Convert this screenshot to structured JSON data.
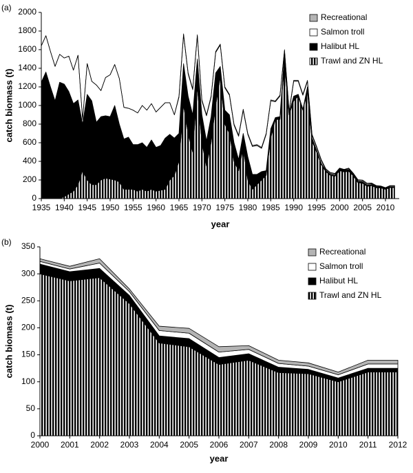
{
  "chart_data": [
    {
      "type": "stacked-area",
      "panel_label": "(a)",
      "xlabel": "year",
      "ylabel": "catch biomass (t)",
      "x": [
        1935,
        1936,
        1937,
        1938,
        1939,
        1940,
        1941,
        1942,
        1943,
        1944,
        1945,
        1946,
        1947,
        1948,
        1949,
        1950,
        1951,
        1952,
        1953,
        1954,
        1955,
        1956,
        1957,
        1958,
        1959,
        1960,
        1961,
        1962,
        1963,
        1964,
        1965,
        1966,
        1967,
        1968,
        1969,
        1970,
        1971,
        1972,
        1973,
        1974,
        1975,
        1976,
        1977,
        1978,
        1979,
        1980,
        1981,
        1982,
        1983,
        1984,
        1985,
        1986,
        1987,
        1988,
        1989,
        1990,
        1991,
        1992,
        1993,
        1994,
        1995,
        1996,
        1997,
        1998,
        1999,
        2000,
        2001,
        2002,
        2003,
        2004,
        2005,
        2006,
        2007,
        2008,
        2009,
        2010,
        2011,
        2012
      ],
      "series": [
        {
          "name": "Trawl and ZN HL",
          "color": "#000000",
          "pattern": "vertical-stripes",
          "values": [
            0,
            0,
            0,
            0,
            0,
            20,
            50,
            80,
            150,
            300,
            200,
            150,
            150,
            200,
            220,
            210,
            200,
            180,
            100,
            100,
            100,
            80,
            100,
            80,
            100,
            80,
            90,
            100,
            200,
            250,
            400,
            1000,
            700,
            500,
            1200,
            600,
            350,
            600,
            1000,
            1300,
            800,
            700,
            400,
            300,
            550,
            200,
            100,
            150,
            200,
            250,
            650,
            850,
            850,
            1450,
            900,
            1050,
            1100,
            950,
            1150,
            620,
            500,
            370,
            290,
            250,
            240,
            300,
            287,
            293,
            245,
            172,
            165,
            132,
            140,
            117,
            115,
            100,
            118,
            118
          ]
        },
        {
          "name": "Halibut HL",
          "color": "#000000",
          "values": [
            1250,
            1360,
            1200,
            1050,
            1250,
            1210,
            1100,
            940,
            910,
            500,
            920,
            900,
            670,
            680,
            670,
            670,
            800,
            620,
            540,
            560,
            480,
            500,
            500,
            470,
            530,
            470,
            480,
            550,
            490,
            400,
            300,
            450,
            400,
            400,
            300,
            300,
            270,
            280,
            350,
            120,
            150,
            200,
            200,
            120,
            150,
            250,
            160,
            110,
            90,
            50,
            100,
            20,
            30,
            100,
            20,
            50,
            20,
            10,
            50,
            30,
            20,
            10,
            10,
            10,
            10,
            18,
            17,
            17,
            15,
            13,
            15,
            13,
            12,
            10,
            8,
            7,
            7,
            7
          ]
        },
        {
          "name": "Salmon troll",
          "color": "#ffffff",
          "values": [
            390,
            390,
            380,
            370,
            300,
            280,
            380,
            360,
            480,
            50,
            330,
            210,
            400,
            280,
            410,
            450,
            440,
            490,
            340,
            310,
            370,
            340,
            400,
            400,
            390,
            380,
            410,
            380,
            340,
            250,
            390,
            310,
            240,
            270,
            250,
            150,
            270,
            210,
            220,
            230,
            240,
            210,
            190,
            250,
            250,
            240,
            300,
            310,
            250,
            390,
            300,
            170,
            220,
            40,
            10,
            160,
            140,
            150,
            60,
            30,
            30,
            30,
            10,
            10,
            10,
            5,
            5,
            10,
            7,
            10,
            10,
            10,
            8,
            7,
            6,
            6,
            8,
            8
          ]
        },
        {
          "name": "Recreational",
          "color": "#b4b4b4",
          "values": [
            0,
            0,
            0,
            0,
            0,
            0,
            0,
            0,
            0,
            0,
            0,
            0,
            0,
            0,
            0,
            0,
            0,
            0,
            0,
            0,
            0,
            0,
            0,
            0,
            0,
            0,
            0,
            0,
            0,
            0,
            10,
            10,
            10,
            10,
            10,
            10,
            10,
            10,
            10,
            10,
            10,
            10,
            10,
            10,
            10,
            10,
            10,
            10,
            10,
            10,
            10,
            10,
            10,
            10,
            10,
            10,
            10,
            10,
            10,
            10,
            10,
            10,
            10,
            10,
            10,
            5,
            5,
            8,
            5,
            8,
            9,
            10,
            7,
            6,
            6,
            5,
            7,
            7
          ]
        }
      ],
      "xlim": [
        1935,
        2013
      ],
      "xticks": [
        1935,
        1940,
        1945,
        1950,
        1955,
        1960,
        1965,
        1970,
        1975,
        1980,
        1985,
        1990,
        1995,
        2000,
        2005,
        2010
      ],
      "ylim": [
        0,
        2000
      ],
      "yticks": [
        0,
        200,
        400,
        600,
        800,
        1000,
        1200,
        1400,
        1600,
        1800,
        2000
      ],
      "legend": "upper right"
    },
    {
      "type": "stacked-area",
      "panel_label": "(b)",
      "xlabel": "year",
      "ylabel": "catch biomass (t)",
      "x": [
        2000,
        2001,
        2002,
        2003,
        2004,
        2005,
        2006,
        2007,
        2008,
        2009,
        2010,
        2011,
        2012
      ],
      "series": [
        {
          "name": "Trawl and ZN HL",
          "color": "#000000",
          "pattern": "vertical-stripes",
          "values": [
            300,
            287,
            293,
            245,
            172,
            165,
            132,
            140,
            117,
            115,
            100,
            118,
            118
          ]
        },
        {
          "name": "Halibut HL",
          "color": "#000000",
          "values": [
            18,
            17,
            17,
            15,
            13,
            15,
            13,
            12,
            10,
            8,
            7,
            7,
            7
          ]
        },
        {
          "name": "Salmon troll",
          "color": "#ffffff",
          "values": [
            5,
            5,
            10,
            7,
            10,
            10,
            10,
            8,
            7,
            6,
            6,
            8,
            8
          ]
        },
        {
          "name": "Recreational",
          "color": "#b4b4b4",
          "values": [
            5,
            5,
            8,
            5,
            8,
            9,
            10,
            7,
            6,
            6,
            5,
            7,
            7
          ]
        }
      ],
      "xlim": [
        2000,
        2012
      ],
      "xticks": [
        2000,
        2001,
        2002,
        2003,
        2004,
        2005,
        2006,
        2007,
        2008,
        2009,
        2010,
        2011,
        2012
      ],
      "ylim": [
        0,
        350
      ],
      "yticks": [
        0,
        50,
        100,
        150,
        200,
        250,
        300,
        350
      ],
      "legend": "upper right"
    }
  ]
}
